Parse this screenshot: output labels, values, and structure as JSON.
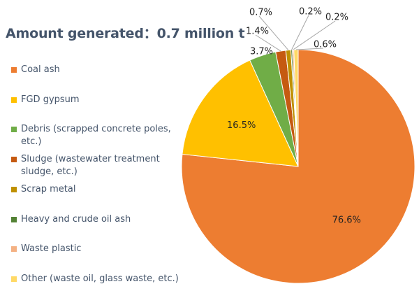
{
  "title": "Amount generated：0.7 million t",
  "chart_data": {
    "type": "pie",
    "title": "Amount generated：0.7 million t",
    "start_angle_deg": 0,
    "direction": "clockwise",
    "slices": [
      {
        "label": "Coal ash",
        "value": 76.6,
        "display": "76.6%",
        "color": "#ED7D31"
      },
      {
        "label": "FGD gypsum",
        "value": 16.5,
        "display": "16.5%",
        "color": "#FFC000"
      },
      {
        "label": "Debris (scrapped concrete poles, etc.)",
        "value": 3.7,
        "display": "3.7%",
        "color": "#70AD47"
      },
      {
        "label": "Sludge (wastewater treatment sludge, etc.)",
        "value": 1.4,
        "display": "1.4%",
        "color": "#C55A11"
      },
      {
        "label": "Scrap metal",
        "value": 0.7,
        "display": "0.7%",
        "color": "#BF9000"
      },
      {
        "label": "Heavy and crude oil ash",
        "value": 0.2,
        "display": "0.2%",
        "color": "#548235"
      },
      {
        "label": "Waste plastic",
        "value": 0.2,
        "display": "0.2%",
        "color": "#F4B183"
      },
      {
        "label": "Other (waste oil, glass waste, etc.)",
        "value": 0.6,
        "display": "0.6%",
        "color": "#FFD966"
      }
    ],
    "legend_placement": "left"
  }
}
